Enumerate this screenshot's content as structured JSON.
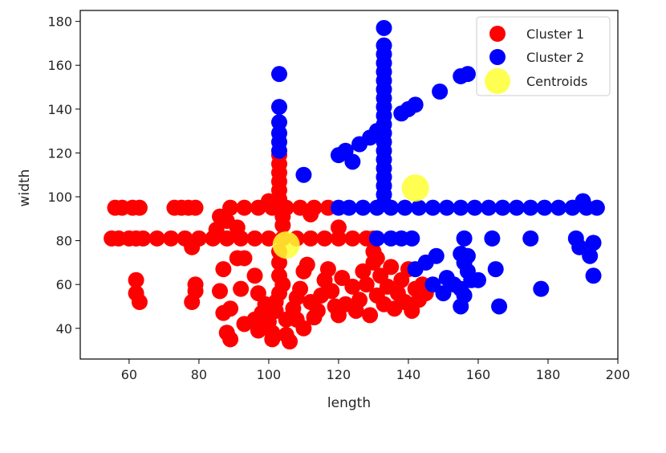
{
  "chart_data": {
    "type": "scatter",
    "title": "",
    "xlabel": "length",
    "ylabel": "width",
    "xlim": [
      46,
      200
    ],
    "ylim": [
      26,
      185
    ],
    "xticks": [
      60,
      80,
      100,
      120,
      140,
      160,
      180,
      200
    ],
    "yticks": [
      40,
      60,
      80,
      100,
      120,
      140,
      160,
      180
    ],
    "grid": false,
    "legend_position": "top-right",
    "series": [
      {
        "name": "Cluster 1",
        "color": "#ff0000",
        "points": [
          [
            55,
            81
          ],
          [
            57,
            81
          ],
          [
            60,
            81
          ],
          [
            62,
            81
          ],
          [
            64,
            81
          ],
          [
            68,
            81
          ],
          [
            72,
            81
          ],
          [
            76,
            81
          ],
          [
            80,
            81
          ],
          [
            84,
            81
          ],
          [
            88,
            81
          ],
          [
            92,
            81
          ],
          [
            96,
            81
          ],
          [
            100,
            81
          ],
          [
            104,
            81
          ],
          [
            108,
            81
          ],
          [
            112,
            81
          ],
          [
            116,
            81
          ],
          [
            120,
            81
          ],
          [
            124,
            81
          ],
          [
            128,
            81
          ],
          [
            130,
            81
          ],
          [
            56,
            95
          ],
          [
            58,
            95
          ],
          [
            61,
            95
          ],
          [
            63,
            95
          ],
          [
            73,
            95
          ],
          [
            75,
            95
          ],
          [
            77,
            95
          ],
          [
            79,
            95
          ],
          [
            89,
            95
          ],
          [
            93,
            95
          ],
          [
            97,
            95
          ],
          [
            101,
            95
          ],
          [
            105,
            95
          ],
          [
            109,
            95
          ],
          [
            113,
            95
          ],
          [
            117,
            95
          ],
          [
            100,
            98
          ],
          [
            103,
            99
          ],
          [
            103,
            103
          ],
          [
            103,
            107
          ],
          [
            103,
            111
          ],
          [
            103,
            115
          ],
          [
            103,
            119
          ],
          [
            104,
            87
          ],
          [
            104,
            91
          ],
          [
            103,
            75
          ],
          [
            103,
            70
          ],
          [
            86,
            91
          ],
          [
            88,
            89
          ],
          [
            91,
            86
          ],
          [
            85,
            85
          ],
          [
            112,
            92
          ],
          [
            120,
            86
          ],
          [
            130,
            75
          ],
          [
            131,
            72
          ],
          [
            62,
            62
          ],
          [
            62,
            56
          ],
          [
            63,
            52
          ],
          [
            78,
            77
          ],
          [
            79,
            60
          ],
          [
            79,
            57
          ],
          [
            78,
            52
          ],
          [
            86,
            57
          ],
          [
            87,
            67
          ],
          [
            89,
            49
          ],
          [
            87,
            47
          ],
          [
            88,
            38
          ],
          [
            89,
            35
          ],
          [
            91,
            72
          ],
          [
            93,
            72
          ],
          [
            92,
            58
          ],
          [
            93,
            42
          ],
          [
            96,
            64
          ],
          [
            97,
            56
          ],
          [
            99,
            51
          ],
          [
            98,
            47
          ],
          [
            96,
            44
          ],
          [
            97,
            39
          ],
          [
            101,
            38
          ],
          [
            101,
            35
          ],
          [
            100,
            43
          ],
          [
            102,
            48
          ],
          [
            102,
            52
          ],
          [
            103,
            56
          ],
          [
            104,
            60
          ],
          [
            103,
            64
          ],
          [
            105,
            44
          ],
          [
            105,
            37
          ],
          [
            106,
            34
          ],
          [
            107,
            49
          ],
          [
            108,
            54
          ],
          [
            109,
            58
          ],
          [
            108,
            44
          ],
          [
            110,
            40
          ],
          [
            110,
            66
          ],
          [
            111,
            69
          ],
          [
            112,
            52
          ],
          [
            113,
            45
          ],
          [
            114,
            48
          ],
          [
            115,
            55
          ],
          [
            116,
            62
          ],
          [
            117,
            67
          ],
          [
            118,
            57
          ],
          [
            119,
            50
          ],
          [
            120,
            46
          ],
          [
            121,
            63
          ],
          [
            122,
            51
          ],
          [
            124,
            59
          ],
          [
            125,
            48
          ],
          [
            126,
            53
          ],
          [
            127,
            66
          ],
          [
            128,
            60
          ],
          [
            129,
            46
          ],
          [
            130,
            70
          ],
          [
            131,
            55
          ],
          [
            132,
            64
          ],
          [
            133,
            51
          ],
          [
            134,
            59
          ],
          [
            135,
            68
          ],
          [
            136,
            49
          ],
          [
            137,
            56
          ],
          [
            138,
            62
          ],
          [
            139,
            52
          ],
          [
            140,
            67
          ],
          [
            141,
            48
          ],
          [
            142,
            58
          ],
          [
            143,
            53
          ],
          [
            144,
            60
          ],
          [
            145,
            56
          ]
        ]
      },
      {
        "name": "Cluster 2",
        "color": "#0000ff",
        "points": [
          [
            133,
            177
          ],
          [
            133,
            169
          ],
          [
            133,
            165
          ],
          [
            133,
            161
          ],
          [
            133,
            157
          ],
          [
            133,
            153
          ],
          [
            133,
            149
          ],
          [
            133,
            145
          ],
          [
            133,
            141
          ],
          [
            133,
            137
          ],
          [
            133,
            133
          ],
          [
            133,
            129
          ],
          [
            133,
            125
          ],
          [
            133,
            121
          ],
          [
            133,
            117
          ],
          [
            133,
            113
          ],
          [
            133,
            109
          ],
          [
            133,
            105
          ],
          [
            133,
            101
          ],
          [
            133,
            97
          ],
          [
            120,
            95
          ],
          [
            123,
            95
          ],
          [
            127,
            95
          ],
          [
            131,
            95
          ],
          [
            135,
            95
          ],
          [
            139,
            95
          ],
          [
            143,
            95
          ],
          [
            147,
            95
          ],
          [
            151,
            95
          ],
          [
            155,
            95
          ],
          [
            159,
            95
          ],
          [
            163,
            95
          ],
          [
            167,
            95
          ],
          [
            171,
            95
          ],
          [
            175,
            95
          ],
          [
            179,
            95
          ],
          [
            183,
            95
          ],
          [
            187,
            95
          ],
          [
            191,
            95
          ],
          [
            194,
            95
          ],
          [
            190,
            98
          ],
          [
            131,
            81
          ],
          [
            135,
            81
          ],
          [
            138,
            81
          ],
          [
            141,
            81
          ],
          [
            103,
            156
          ],
          [
            103,
            141
          ],
          [
            103,
            134
          ],
          [
            103,
            129
          ],
          [
            103,
            125
          ],
          [
            103,
            121
          ],
          [
            110,
            110
          ],
          [
            120,
            119
          ],
          [
            122,
            121
          ],
          [
            124,
            116
          ],
          [
            126,
            124
          ],
          [
            129,
            127
          ],
          [
            131,
            130
          ],
          [
            138,
            138
          ],
          [
            140,
            140
          ],
          [
            142,
            142
          ],
          [
            149,
            148
          ],
          [
            155,
            155
          ],
          [
            157,
            156
          ],
          [
            142,
            67
          ],
          [
            145,
            70
          ],
          [
            148,
            73
          ],
          [
            147,
            60
          ],
          [
            150,
            56
          ],
          [
            151,
            63
          ],
          [
            153,
            60
          ],
          [
            155,
            58
          ],
          [
            156,
            81
          ],
          [
            155,
            74
          ],
          [
            156,
            70
          ],
          [
            157,
            66
          ],
          [
            158,
            62
          ],
          [
            156,
            55
          ],
          [
            155,
            50
          ],
          [
            157,
            73
          ],
          [
            160,
            62
          ],
          [
            164,
            81
          ],
          [
            165,
            67
          ],
          [
            166,
            50
          ],
          [
            175,
            81
          ],
          [
            178,
            58
          ],
          [
            188,
            81
          ],
          [
            189,
            77
          ],
          [
            193,
            79
          ],
          [
            192,
            73
          ],
          [
            193,
            64
          ]
        ]
      },
      {
        "name": "Centroids",
        "color": "#ffff33",
        "points": [
          [
            105,
            78
          ],
          [
            142,
            104
          ]
        ]
      }
    ]
  }
}
